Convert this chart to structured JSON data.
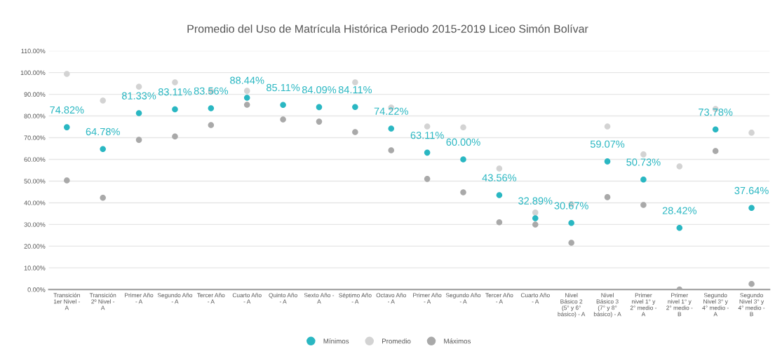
{
  "chart_data": {
    "type": "scatter",
    "title": "Promedio del Uso de Matrícula Histórica Periodo 2015-2019 Liceo Simón Bolívar",
    "categories": [
      "Transición 1er Nivel - A",
      "Transición 2º Nivel - A",
      "Primer Año - A",
      "Segundo Año - A",
      "Tercer Año - A",
      "Cuarto Año - A",
      "Quinto Año - A",
      "Sexto Año - A",
      "Séptimo Año - A",
      "Octavo Año - A",
      "Primer Año - A",
      "Segundo Año - A",
      "Tercer Año - A",
      "Cuarto Año - A",
      "Nivel Básico 2 (5° y 6° básico) - A",
      "Nivel Básico 3 (7° y 8° básico) - A",
      "Primer nivel 1° y 2° medio - A",
      "Primer nivel 1° y 2° medio - B",
      "Segundo Nivel 3° y 4° medio - A",
      "Segundo Nivel 3° y 4° medio - B"
    ],
    "series": [
      {
        "name": "Promedio",
        "color": "#d3d3d3",
        "values": [
          99.4,
          87.1,
          93.5,
          95.5,
          91.3,
          91.6,
          null,
          null,
          95.5,
          83.9,
          75.2,
          74.8,
          55.8,
          35.5,
          39.4,
          75.2,
          62.3,
          56.8,
          83.2,
          72.3
        ]
      },
      {
        "name": "Máximos",
        "color": "#a9a9a9",
        "values": [
          50.3,
          42.3,
          69.0,
          70.6,
          75.8,
          85.2,
          78.4,
          77.4,
          72.6,
          64.2,
          51.0,
          44.8,
          31.0,
          30.0,
          21.6,
          42.6,
          39.0,
          0,
          63.9,
          2.6
        ]
      },
      {
        "name": "Mínimos",
        "color": "#2ab7c2",
        "values": [
          74.82,
          64.78,
          81.33,
          83.11,
          83.56,
          88.44,
          85.11,
          84.09,
          84.11,
          74.22,
          63.11,
          60.0,
          43.56,
          32.89,
          30.67,
          59.07,
          50.73,
          28.42,
          73.78,
          37.64
        ],
        "value_labels": [
          "74.82%",
          "64.78%",
          "81.33%",
          "83.11%",
          "83.56%",
          "88.44%",
          "85.11%",
          "84.09%",
          "84.11%",
          "74.22%",
          "63.11%",
          "60.00%",
          "43.56%",
          "32.89%",
          "30.67%",
          "59.07%",
          "50.73%",
          "28.42%",
          "73.78%",
          "37.64%"
        ]
      }
    ],
    "ylim": [
      0,
      110
    ],
    "yticks": [
      {
        "value": 0,
        "label": "0.00%"
      },
      {
        "value": 10,
        "label": "10.00%"
      },
      {
        "value": 20,
        "label": "20.00%"
      },
      {
        "value": 30,
        "label": "30.00%"
      },
      {
        "value": 40,
        "label": "40.00%"
      },
      {
        "value": 50,
        "label": "50.00%"
      },
      {
        "value": 60,
        "label": "60.00%"
      },
      {
        "value": 70,
        "label": "70.00%"
      },
      {
        "value": 80,
        "label": "80.00%"
      },
      {
        "value": 90,
        "label": "90.00%"
      },
      {
        "value": 100,
        "label": "100.00%"
      },
      {
        "value": 110,
        "label": "110.00%"
      }
    ],
    "grid": "y",
    "legend": "bottom",
    "marker": "circle"
  }
}
